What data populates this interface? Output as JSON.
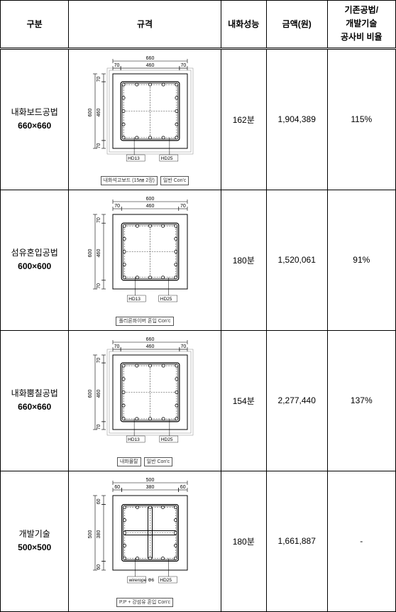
{
  "header": {
    "col_type": "구분",
    "col_spec": "규격",
    "col_perf": "내화성능",
    "col_amount": "금액(원)",
    "col_ratio_l1": "기존공법/",
    "col_ratio_l2": "개발기술",
    "col_ratio_l3": "공사비 비율"
  },
  "rows": [
    {
      "type_l1": "내화보드공법",
      "type_l2": "660×660",
      "perf": "162분",
      "amount": "1,904,389",
      "ratio": "115%",
      "diagram": {
        "outer": 660,
        "inner": 460,
        "side": 70,
        "v_outer": 600,
        "v_inner": 460,
        "v_side1": 70,
        "v_side2": 70,
        "style": "board",
        "label1": "HD13",
        "label2": "HD25",
        "caption1": "내화석고보드 (15㎜ 2장)",
        "caption2": "일반 Con'c"
      }
    },
    {
      "type_l1": "섬유혼입공법",
      "type_l2": "600×600",
      "perf": "180분",
      "amount": "1,520,061",
      "ratio": "91%",
      "diagram": {
        "outer": 600,
        "inner": 460,
        "side": 70,
        "v_outer": 600,
        "v_inner": 460,
        "v_side1": 70,
        "v_side2": 70,
        "style": "fiber",
        "label1": "HD13",
        "label2": "HD25",
        "caption1": "폴리론화이버 혼입 Con'c",
        "caption2": ""
      }
    },
    {
      "type_l1": "내화뿜칠공법",
      "type_l2": "660×660",
      "perf": "154분",
      "amount": "2,277,440",
      "ratio": "137%",
      "diagram": {
        "outer": 660,
        "inner": 460,
        "side": 70,
        "v_outer": 600,
        "v_inner": 460,
        "v_side1": 70,
        "v_side2": 70,
        "style": "spray",
        "label1": "HD13",
        "label2": "HD25",
        "caption0": "내화몰탈",
        "caption1": "",
        "caption2": "일반 Con'c"
      }
    },
    {
      "type_l1": "개발기술",
      "type_l2": "500×500",
      "perf": "180분",
      "amount": "1,661,887",
      "ratio": "-",
      "diagram": {
        "outer": 500,
        "inner": 380,
        "side": 60,
        "v_outer": 500,
        "v_inner": 380,
        "v_side1": 60,
        "v_side2": 60,
        "style": "dev",
        "label1": "wirerope Φ6",
        "label2": "HD25",
        "caption1": "P.P + 강섬유 혼입 Con'c",
        "caption2": ""
      }
    }
  ]
}
